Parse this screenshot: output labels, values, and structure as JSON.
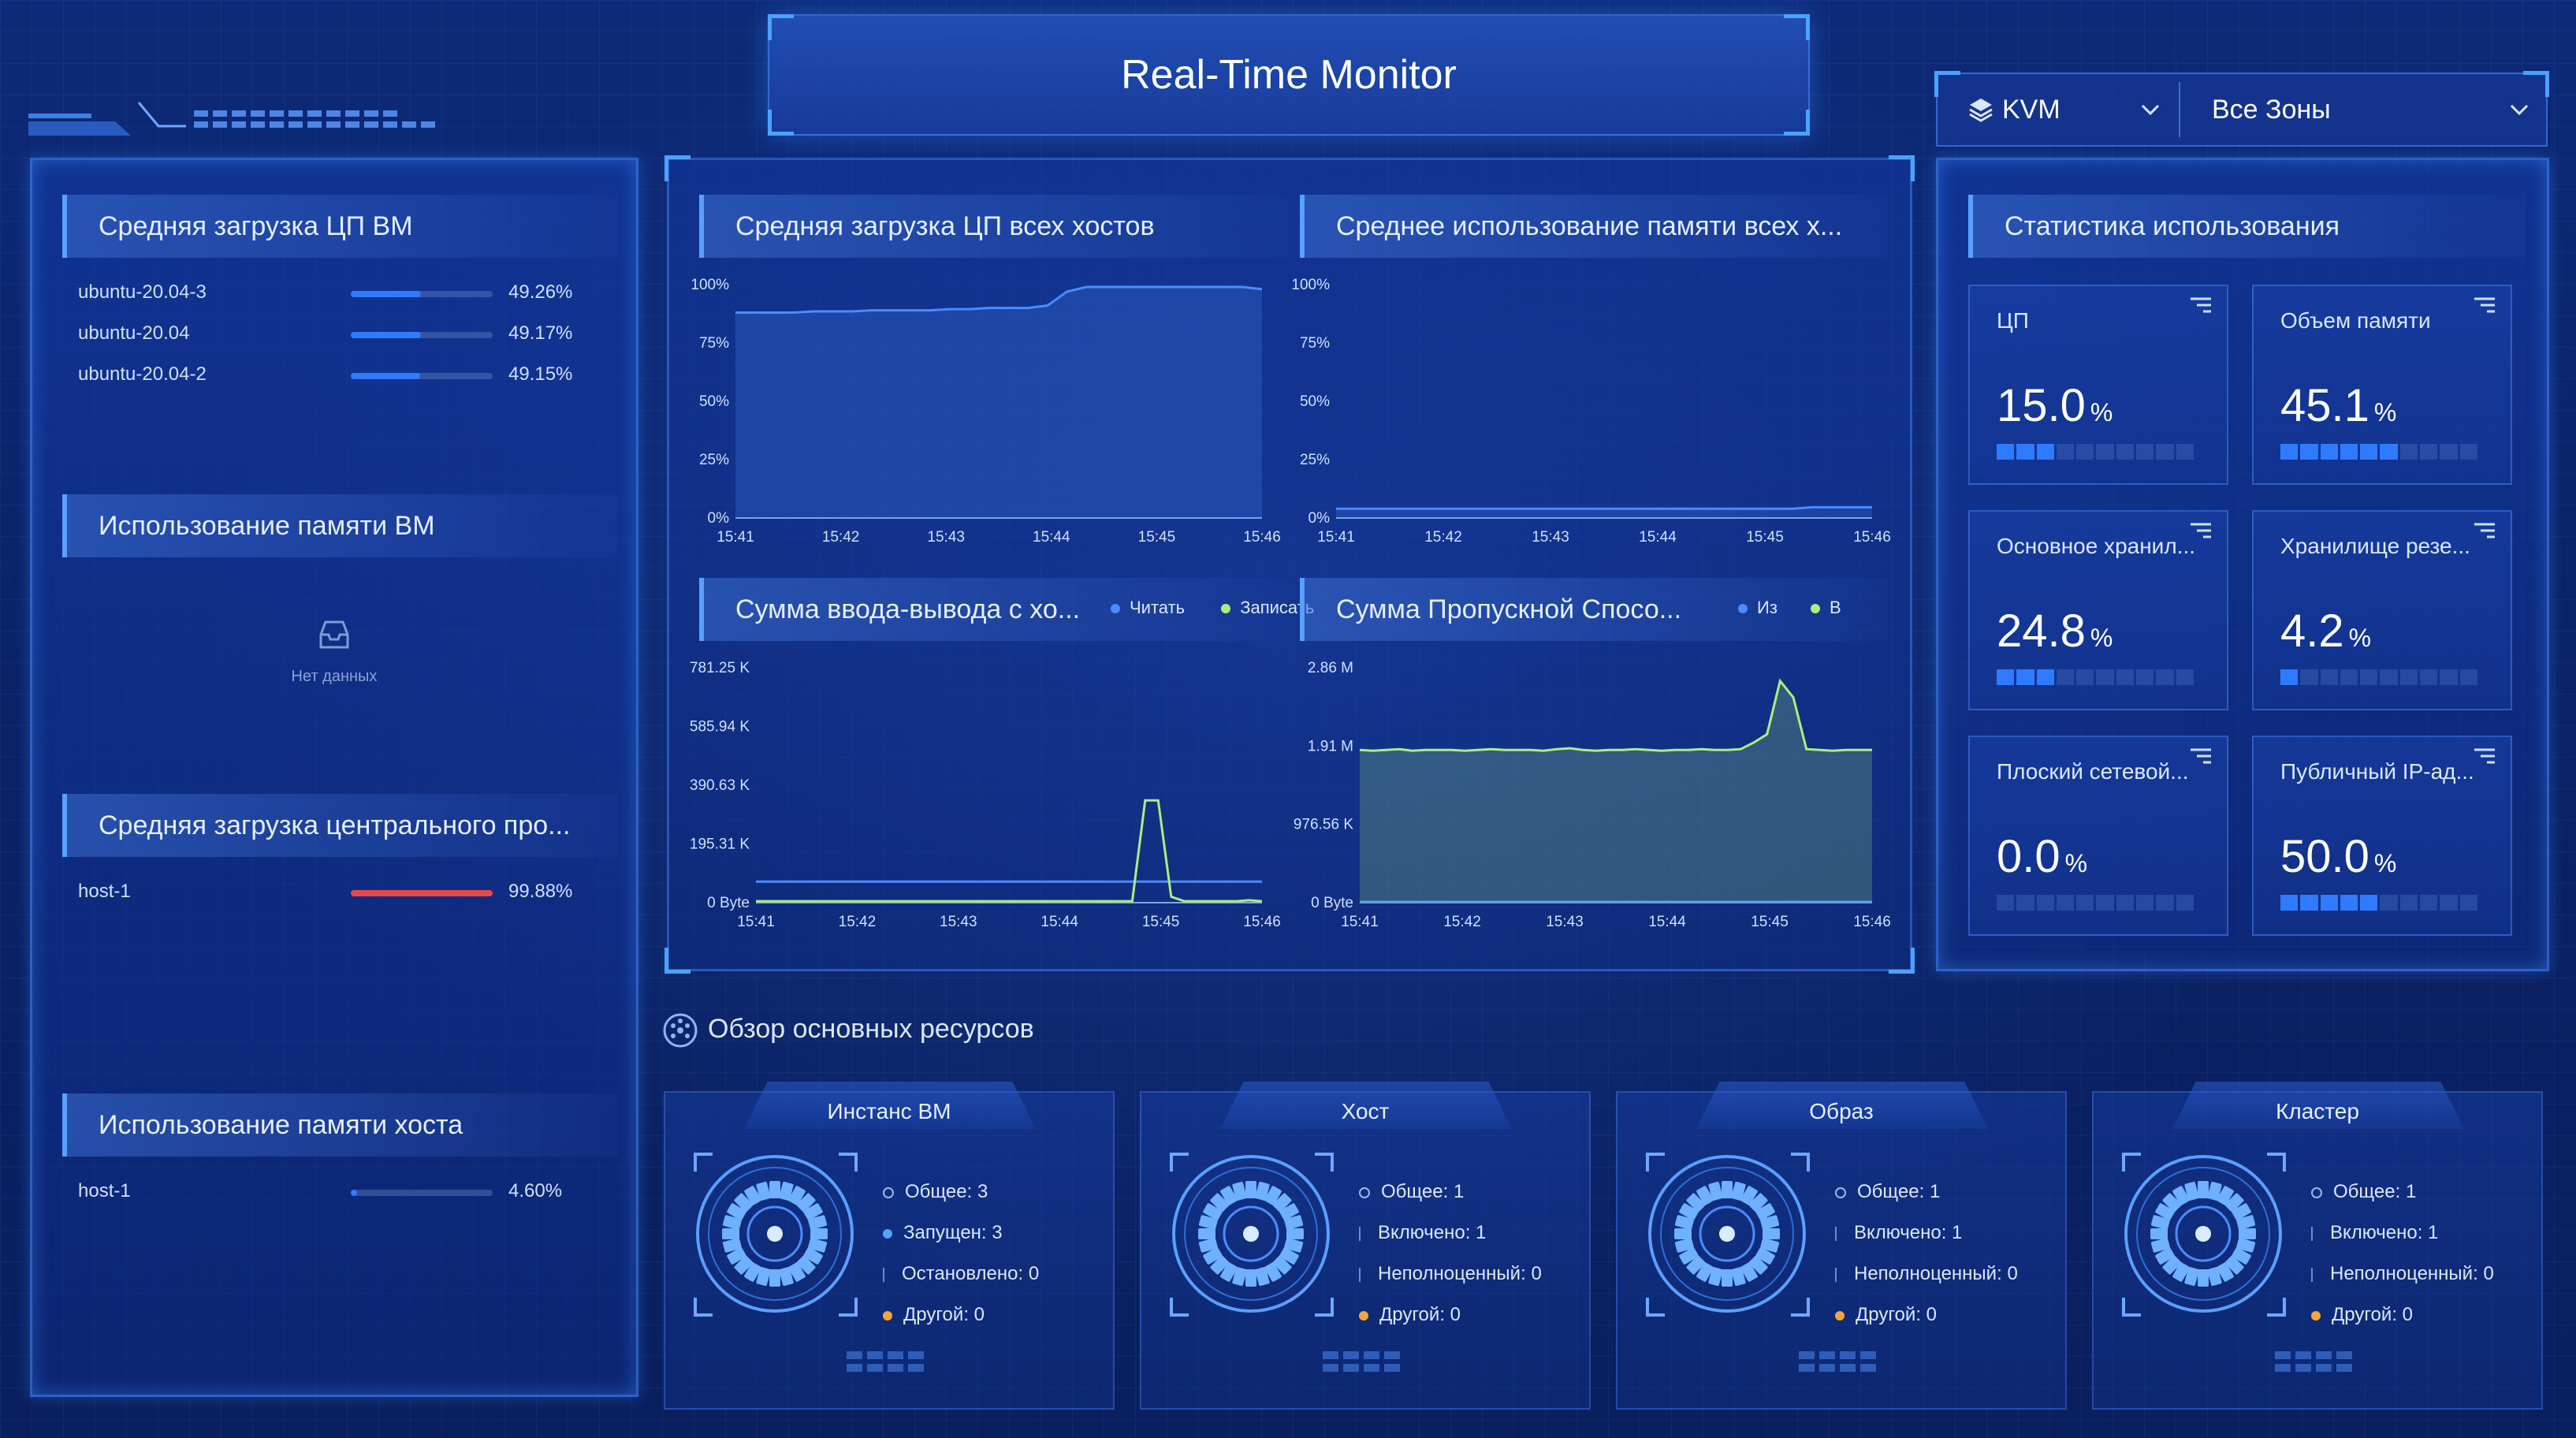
{
  "header": {
    "title": "Real-Time Monitor"
  },
  "selectors": {
    "hypervisor": "KVM",
    "zone": "Все Зоны"
  },
  "left": {
    "cpu_vm": {
      "title": "Средняя загрузка ЦП ВМ",
      "rows": [
        {
          "name": "ubuntu-20.04-3",
          "value": "49.26%",
          "pct": 49.26
        },
        {
          "name": "ubuntu-20.04",
          "value": "49.17%",
          "pct": 49.17
        },
        {
          "name": "ubuntu-20.04-2",
          "value": "49.15%",
          "pct": 49.15
        }
      ]
    },
    "mem_vm": {
      "title": "Использование памяти ВМ",
      "empty": "Нет данных"
    },
    "cpu_host": {
      "title": "Средняя загрузка центрального про...",
      "rows": [
        {
          "name": "host-1",
          "value": "99.88%",
          "pct": 99.88
        }
      ]
    },
    "mem_host": {
      "title": "Использование памяти хоста",
      "rows": [
        {
          "name": "host-1",
          "value": "4.60%",
          "pct": 4.6
        }
      ]
    }
  },
  "charts": {
    "cpu_all": {
      "title": "Средняя загрузка ЦП всех хостов"
    },
    "mem_all": {
      "title": "Среднее использование памяти всех х..."
    },
    "io": {
      "title": "Сумма ввода-вывода с хо...",
      "legend": [
        "Читать",
        "Записать"
      ]
    },
    "bw": {
      "title": "Сумма Пропускной Спосо...",
      "legend": [
        "Из",
        "В"
      ]
    }
  },
  "chart_data": [
    {
      "type": "area",
      "title": "Средняя загрузка ЦП всех хостов",
      "x_ticks": [
        "15:41",
        "15:42",
        "15:43",
        "15:44",
        "15:45",
        "15:46"
      ],
      "y_ticks": [
        "0%",
        "25%",
        "50%",
        "75%",
        "100%"
      ],
      "ylim": [
        0,
        100
      ],
      "series": [
        {
          "values": [
            88,
            88,
            88,
            88,
            88.5,
            88.5,
            88.5,
            89,
            89,
            89,
            89,
            89.5,
            89.5,
            90,
            90,
            90,
            91,
            97,
            99,
            99,
            99,
            99,
            99,
            99,
            99,
            99,
            99,
            98
          ]
        }
      ]
    },
    {
      "type": "area",
      "title": "Среднее использование памяти всех х...",
      "x_ticks": [
        "15:41",
        "15:42",
        "15:43",
        "15:44",
        "15:45",
        "15:46"
      ],
      "y_ticks": [
        "0%",
        "25%",
        "50%",
        "75%",
        "100%"
      ],
      "ylim": [
        0,
        100
      ],
      "series": [
        {
          "values": [
            4,
            4,
            4,
            4,
            4,
            4,
            4,
            4,
            4,
            4,
            4,
            4,
            4,
            4,
            4,
            4,
            4,
            4,
            4,
            4,
            4,
            4,
            4,
            4,
            4.6,
            4.6,
            4.6,
            4.6
          ]
        }
      ]
    },
    {
      "type": "line",
      "title": "Сумма ввода-вывода с хо...",
      "x_ticks": [
        "15:41",
        "15:42",
        "15:43",
        "15:44",
        "15:45",
        "15:46"
      ],
      "y_ticks": [
        "0 Byte",
        "195.31 K",
        "390.63 K",
        "585.94 K",
        "781.25 K"
      ],
      "ylim": [
        0,
        781.25
      ],
      "series": [
        {
          "name": "Читать",
          "color": "#4a8cff",
          "values": [
            70,
            70,
            70,
            70,
            70,
            70,
            70,
            70,
            70,
            70,
            70,
            70,
            70,
            70,
            70,
            70,
            70,
            70,
            70,
            70,
            70,
            70,
            70,
            70,
            70,
            70,
            70,
            70,
            70,
            70,
            70,
            70,
            70,
            70,
            70,
            70,
            70,
            70,
            70,
            70
          ]
        },
        {
          "name": "Записать",
          "color": "#a8f07a",
          "values": [
            5,
            5,
            5,
            5,
            5,
            5,
            5,
            5,
            5,
            5,
            5,
            5,
            5,
            5,
            5,
            5,
            5,
            5,
            5,
            5,
            5,
            5,
            5,
            5,
            5,
            5,
            5,
            5,
            5,
            5,
            340,
            340,
            20,
            5,
            5,
            5,
            5,
            5,
            8,
            5
          ]
        }
      ]
    },
    {
      "type": "area",
      "title": "Сумма Пропускной Спосо...",
      "x_ticks": [
        "15:41",
        "15:42",
        "15:43",
        "15:44",
        "15:45",
        "15:46"
      ],
      "y_ticks": [
        "0 Byte",
        "976.56 K",
        "1.91 M",
        "2.86 M"
      ],
      "ylim": [
        0,
        2.86
      ],
      "series": [
        {
          "name": "Из",
          "color": "#4a8cff",
          "values": [
            0.01,
            0.01,
            0.01,
            0.01,
            0.01,
            0.01,
            0.01,
            0.01,
            0.01,
            0.01,
            0.01,
            0.01,
            0.01,
            0.01,
            0.01,
            0.01,
            0.01,
            0.01,
            0.01,
            0.01,
            0.01,
            0.01,
            0.01,
            0.01,
            0.01,
            0.01,
            0.01,
            0.01,
            0.01,
            0.01,
            0.01,
            0.01,
            0.01,
            0.01,
            0.01,
            0.01,
            0.01,
            0.01,
            0.01,
            0.01
          ]
        },
        {
          "name": "В",
          "color": "#a8f07a",
          "values": [
            1.86,
            1.85,
            1.86,
            1.87,
            1.85,
            1.86,
            1.86,
            1.86,
            1.85,
            1.86,
            1.87,
            1.86,
            1.86,
            1.86,
            1.85,
            1.87,
            1.88,
            1.86,
            1.85,
            1.86,
            1.86,
            1.87,
            1.86,
            1.85,
            1.86,
            1.86,
            1.87,
            1.86,
            1.86,
            1.87,
            1.95,
            2.05,
            2.7,
            2.5,
            1.87,
            1.86,
            1.85,
            1.86,
            1.86,
            1.86
          ]
        }
      ]
    }
  ],
  "usage": {
    "title": "Статистика использования",
    "cards": [
      {
        "label": "ЦП",
        "value": "15.0",
        "unit": "%",
        "level": 15.0
      },
      {
        "label": "Объем памяти",
        "value": "45.1",
        "unit": "%",
        "level": 45.1
      },
      {
        "label": "Основное хранил...",
        "value": "24.8",
        "unit": "%",
        "level": 24.8
      },
      {
        "label": "Хранилище резе...",
        "value": "4.2",
        "unit": "%",
        "level": 4.2
      },
      {
        "label": "Плоский сетевой...",
        "value": "0.0",
        "unit": "%",
        "level": 0.0
      },
      {
        "label": "Публичный IP-ад...",
        "value": "50.0",
        "unit": "%",
        "level": 50.0
      }
    ]
  },
  "resources": {
    "title": "Обзор основных ресурсов",
    "cards": [
      {
        "title": "Инстанс ВМ",
        "lines": [
          {
            "label": "Общее:",
            "value": "3",
            "dot": "#9fb6e6",
            "ring": true
          },
          {
            "label": "Запущен:",
            "value": "3",
            "dot": "#5aa0ff",
            "ring": false
          },
          {
            "label": "Остановлено:",
            "value": "0",
            "dot": "",
            "ring": false
          },
          {
            "label": "Другой:",
            "value": "0",
            "dot": "#f5a63b",
            "ring": false
          }
        ]
      },
      {
        "title": "Хост",
        "lines": [
          {
            "label": "Общее:",
            "value": "1",
            "dot": "#9fb6e6",
            "ring": true
          },
          {
            "label": "Включено:",
            "value": "1",
            "dot": "",
            "ring": false
          },
          {
            "label": "Неполноценный:",
            "value": "0",
            "dot": "",
            "ring": false
          },
          {
            "label": "Другой:",
            "value": "0",
            "dot": "#f5a63b",
            "ring": false
          }
        ]
      },
      {
        "title": "Образ",
        "lines": [
          {
            "label": "Общее:",
            "value": "1",
            "dot": "#9fb6e6",
            "ring": true
          },
          {
            "label": "Включено:",
            "value": "1",
            "dot": "",
            "ring": false
          },
          {
            "label": "Неполноценный:",
            "value": "0",
            "dot": "",
            "ring": false
          },
          {
            "label": "Другой:",
            "value": "0",
            "dot": "#f5a63b",
            "ring": false
          }
        ]
      },
      {
        "title": "Кластер",
        "lines": [
          {
            "label": "Общее:",
            "value": "1",
            "dot": "#9fb6e6",
            "ring": true
          },
          {
            "label": "Включено:",
            "value": "1",
            "dot": "",
            "ring": false
          },
          {
            "label": "Неполноценный:",
            "value": "0",
            "dot": "",
            "ring": false
          },
          {
            "label": "Другой:",
            "value": "0",
            "dot": "#f5a63b",
            "ring": false
          }
        ]
      }
    ]
  },
  "colors": {
    "accent": "#2f7bff",
    "danger": "#e5474b",
    "write": "#a8f07a",
    "other": "#f5a63b"
  }
}
